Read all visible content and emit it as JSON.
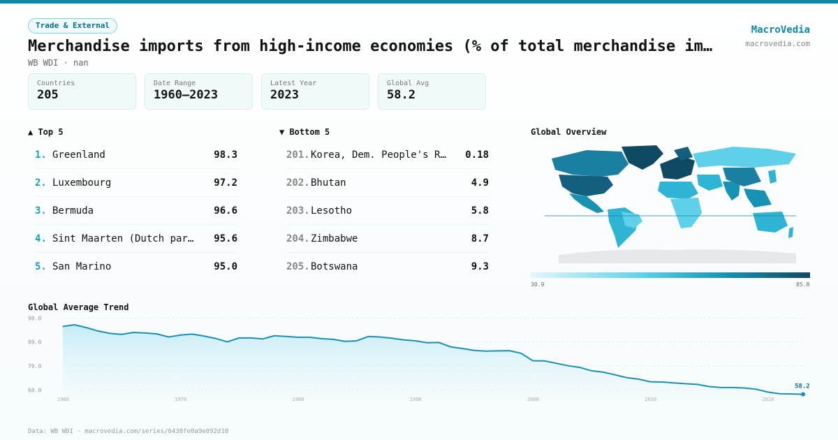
{
  "header": {
    "category": "Trade & External",
    "title": "Merchandise imports from high-income economies (% of total merchandise imports)",
    "subtitle": "WB WDI · nan",
    "brand": "MacroVedia",
    "brand_url": "macrovedia.com"
  },
  "stats": [
    {
      "label": "Countries",
      "value": "205"
    },
    {
      "label": "Date Range",
      "value": "1960–2023"
    },
    {
      "label": "Latest Year",
      "value": "2023"
    },
    {
      "label": "Global Avg",
      "value": "58.2"
    }
  ],
  "top": {
    "heading": "▲ Top 5",
    "items": [
      {
        "rank": "1.",
        "name": "Greenland",
        "value": "98.3"
      },
      {
        "rank": "2.",
        "name": "Luxembourg",
        "value": "97.2"
      },
      {
        "rank": "3.",
        "name": "Bermuda",
        "value": "96.6"
      },
      {
        "rank": "4.",
        "name": "Sint Maarten (Dutch part)",
        "value": "95.6"
      },
      {
        "rank": "5.",
        "name": "San Marino",
        "value": "95.0"
      }
    ]
  },
  "bottom": {
    "heading": "▼ Bottom 5",
    "items": [
      {
        "rank": "201.",
        "name": "Korea, Dem. People's Rep.",
        "value": "0.18"
      },
      {
        "rank": "202.",
        "name": "Bhutan",
        "value": "4.9"
      },
      {
        "rank": "203.",
        "name": "Lesotho",
        "value": "5.8"
      },
      {
        "rank": "204.",
        "name": "Zimbabwe",
        "value": "8.7"
      },
      {
        "rank": "205.",
        "name": "Botswana",
        "value": "9.3"
      }
    ]
  },
  "map": {
    "heading": "Global Overview",
    "legend_min": "30.9",
    "legend_max": "85.8",
    "colors": [
      "#e2f7fb",
      "#5fd0ea",
      "#1792b2",
      "#0f4a62"
    ]
  },
  "trend_heading": "Global Average Trend",
  "footer": "Data: WB WDI · macrovedia.com/series/6438fe0a9e092d10",
  "chart_data": {
    "type": "area",
    "title": "Global Average Trend",
    "x": [
      1960,
      1961,
      1962,
      1963,
      1964,
      1965,
      1966,
      1967,
      1968,
      1969,
      1970,
      1971,
      1972,
      1973,
      1974,
      1975,
      1976,
      1977,
      1978,
      1979,
      1980,
      1981,
      1982,
      1983,
      1984,
      1985,
      1986,
      1987,
      1988,
      1989,
      1990,
      1991,
      1992,
      1993,
      1994,
      1995,
      1996,
      1997,
      1998,
      1999,
      2000,
      2001,
      2002,
      2003,
      2004,
      2005,
      2006,
      2007,
      2008,
      2009,
      2010,
      2011,
      2012,
      2013,
      2014,
      2015,
      2016,
      2017,
      2018,
      2019,
      2020,
      2021,
      2022,
      2023
    ],
    "values": [
      86.5,
      87.2,
      86.0,
      84.6,
      83.6,
      83.2,
      84.0,
      83.8,
      83.4,
      82.1,
      82.9,
      83.3,
      82.5,
      81.5,
      80.1,
      81.7,
      81.7,
      81.3,
      82.6,
      82.3,
      82.0,
      82.0,
      81.4,
      81.1,
      80.3,
      80.5,
      82.3,
      82.1,
      81.6,
      80.9,
      80.5,
      79.7,
      79.8,
      78.0,
      77.3,
      76.5,
      76.2,
      76.3,
      76.4,
      75.3,
      72.2,
      72.1,
      71.1,
      70.1,
      69.4,
      68.0,
      67.4,
      66.3,
      65.1,
      64.5,
      63.4,
      63.3,
      62.9,
      62.6,
      62.3,
      61.4,
      61.0,
      61.0,
      60.8,
      60.3,
      59.1,
      58.4,
      58.3,
      58.2
    ],
    "ylim": [
      56,
      91
    ],
    "yticks": [
      "90.0",
      "80.0",
      "70.0",
      "60.0"
    ],
    "xticks": [
      "1960",
      "1970",
      "1980",
      "1990",
      "2000",
      "2010",
      "2020"
    ],
    "last_label": "58.2",
    "line_color": "#1a8fb5",
    "grid": true
  }
}
